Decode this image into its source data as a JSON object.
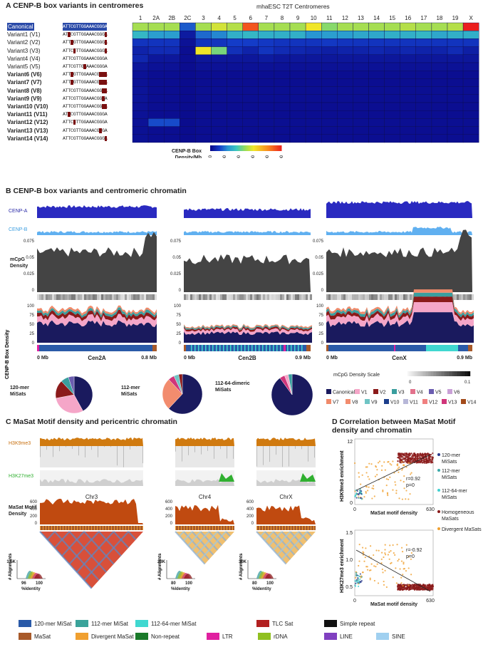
{
  "panelA": {
    "title": "A CENP-B box variants in centromeres",
    "heatmap_title": "mhaESC T2T Centromeres",
    "chromosomes": [
      "1",
      "2A",
      "2B",
      "2C",
      "3",
      "4",
      "5",
      "6",
      "7",
      "8",
      "9",
      "10",
      "11",
      "12",
      "13",
      "14",
      "15",
      "16",
      "17",
      "18",
      "19",
      "X"
    ],
    "variants": [
      {
        "name": "Canonical",
        "seq": "ATTCGTTGGAAACGGGA"
      },
      {
        "name": "Variant1 (V1)",
        "seq": "ATTCGTTGGAAACGGGA"
      },
      {
        "name": "Variant2 (V2)",
        "seq": "ATTCGTTGGAAACGGGA"
      },
      {
        "name": "Variant3 (V3)",
        "seq": "ATTCGTTGGAAACGGGA"
      },
      {
        "name": "Variant4 (V4)",
        "seq": "ATTCGTTGGAAACGGGA"
      },
      {
        "name": "Variant5 (V5)",
        "seq": "ATTCGTTGGAAACGGGA"
      },
      {
        "name": "Variant6 (V6)",
        "seq": "ATTCGTTGGAAACGGGA"
      },
      {
        "name": "Variant7 (V7)",
        "seq": "ATTCGTTGGAAACGGGA"
      },
      {
        "name": "Variant8 (V8)",
        "seq": "ATTCGTTGGAAACGGGA"
      },
      {
        "name": "Variant9 (V9)",
        "seq": "ATTCGTTGGAAACGGGA"
      },
      {
        "name": "Variant10 (V10)",
        "seq": "ATTCGTTGGAAACGGGA"
      },
      {
        "name": "Variant11 (V11)",
        "seq": "ATTCGTTGGAAACGGGA"
      },
      {
        "name": "Variant12 (V12)",
        "seq": "ATTCGTTGGAAACGGGA"
      },
      {
        "name": "Variant13 (V13)",
        "seq": "ATTCGTTGGAAACGGGA"
      },
      {
        "name": "Variant14 (V14)",
        "seq": "ATTCGTTGGAAACGGGA"
      }
    ],
    "mutations": [
      [],
      [
        2,
        16
      ],
      [
        3,
        16
      ],
      [
        4,
        16
      ],
      [],
      [
        8
      ],
      [
        3,
        14,
        15,
        16
      ],
      [
        3,
        14,
        15,
        16
      ],
      [
        15,
        16
      ],
      [
        15
      ],
      [
        15,
        16
      ],
      [
        2
      ],
      [
        4
      ],
      [
        14
      ],
      [
        16
      ]
    ],
    "heatmap_values": [
      [
        2500,
        2500,
        2500,
        800,
        2500,
        2800,
        2600,
        4500,
        2500,
        2500,
        2500,
        3000,
        2300,
        2500,
        2500,
        2500,
        2500,
        2600,
        2500,
        2500,
        2600,
        5000
      ],
      [
        1600,
        1300,
        1300,
        200,
        900,
        1100,
        1500,
        1600,
        1500,
        1500,
        1500,
        1200,
        1300,
        1300,
        1400,
        1400,
        1500,
        1500,
        1600,
        1400,
        1500,
        1500
      ],
      [
        500,
        500,
        500,
        100,
        500,
        500,
        600,
        600,
        550,
        500,
        500,
        500,
        550,
        500,
        500,
        500,
        500,
        500,
        500,
        500,
        500,
        500
      ],
      [
        300,
        400,
        400,
        50,
        3000,
        2200,
        450,
        300,
        500,
        400,
        350,
        300,
        250,
        300,
        300,
        350,
        300,
        350,
        300,
        300,
        400,
        250
      ],
      [
        350,
        150,
        150,
        50,
        150,
        150,
        150,
        150,
        200,
        150,
        150,
        150,
        150,
        150,
        150,
        150,
        150,
        150,
        150,
        150,
        150,
        150
      ],
      [
        150,
        100,
        100,
        30,
        100,
        100,
        100,
        100,
        100,
        100,
        100,
        100,
        100,
        100,
        100,
        100,
        100,
        100,
        100,
        100,
        100,
        100
      ],
      [
        100,
        50,
        50,
        20,
        50,
        50,
        50,
        50,
        50,
        50,
        50,
        50,
        50,
        50,
        50,
        50,
        50,
        50,
        50,
        50,
        50,
        50
      ],
      [
        100,
        50,
        50,
        20,
        50,
        50,
        50,
        50,
        50,
        50,
        50,
        50,
        50,
        50,
        50,
        50,
        50,
        50,
        50,
        50,
        50,
        50
      ],
      [
        120,
        50,
        50,
        20,
        60,
        60,
        60,
        60,
        60,
        60,
        60,
        60,
        60,
        60,
        60,
        60,
        60,
        60,
        60,
        60,
        60,
        60
      ],
      [
        120,
        50,
        50,
        20,
        60,
        60,
        60,
        60,
        60,
        60,
        60,
        60,
        60,
        60,
        60,
        60,
        60,
        60,
        60,
        60,
        60,
        60
      ],
      [
        100,
        50,
        50,
        20,
        50,
        50,
        50,
        50,
        50,
        50,
        50,
        50,
        50,
        50,
        50,
        50,
        50,
        50,
        50,
        50,
        50,
        50
      ],
      [
        100,
        50,
        50,
        20,
        50,
        50,
        50,
        50,
        50,
        50,
        50,
        50,
        50,
        50,
        50,
        50,
        50,
        50,
        50,
        50,
        50,
        50
      ],
      [
        100,
        700,
        700,
        20,
        60,
        60,
        60,
        60,
        60,
        60,
        60,
        60,
        60,
        60,
        60,
        60,
        60,
        60,
        60,
        60,
        60,
        60
      ],
      [
        80,
        50,
        50,
        20,
        50,
        50,
        50,
        50,
        50,
        50,
        50,
        50,
        50,
        50,
        50,
        50,
        50,
        50,
        50,
        50,
        50,
        50
      ],
      [
        80,
        50,
        50,
        20,
        50,
        50,
        50,
        50,
        50,
        50,
        50,
        50,
        50,
        50,
        50,
        50,
        50,
        50,
        50,
        50,
        50,
        50
      ]
    ],
    "colorbar_label": "CENP-B Box\nDensity/Mb",
    "colorbar_ticks": [
      "0",
      "1000",
      "2000",
      "3000",
      "4000",
      "5000"
    ]
  },
  "panelB": {
    "title": "B CENP-B box variants and centromeric chromatin",
    "track_labels": {
      "cenpa": "CENP-A",
      "cenpb": "CENP-B",
      "mcpg": "mCpG\nDensity",
      "cenpb_density": "CENP-B Box Density"
    },
    "mcpg_ticks": [
      "0.075",
      "0.05",
      "0.025",
      "0"
    ],
    "density_ticks": [
      "100",
      "75",
      "50",
      "25",
      "0"
    ],
    "chrom": [
      {
        "name": "Cen2A",
        "start": "0 Mb",
        "end": "0.8 Mb"
      },
      {
        "name": "Cen2B",
        "start": "0 Mb",
        "end": "0.9 Mb"
      },
      {
        "name": "CenX",
        "start": "0 Mb",
        "end": "0.9 Mb"
      }
    ],
    "pie_labels": [
      "120-mer\nMiSats",
      "112-mer\nMiSats",
      "112-64-dimeric\nMiSats"
    ],
    "scale_label": "mCpG Density Scale",
    "scale_ticks": [
      "0",
      "0.1"
    ],
    "legend": [
      {
        "name": "Canonical",
        "color": "#1a1a5e"
      },
      {
        "name": "V1",
        "color": "#f5a6c8"
      },
      {
        "name": "V2",
        "color": "#8b1a1a"
      },
      {
        "name": "V3",
        "color": "#3a9e9e"
      },
      {
        "name": "V4",
        "color": "#e2728c"
      },
      {
        "name": "V5",
        "color": "#6b5db0"
      },
      {
        "name": "V6",
        "color": "#c9a0d6"
      },
      {
        "name": "V7",
        "color": "#f08a6a"
      },
      {
        "name": "V8",
        "color": "#f28c6e"
      },
      {
        "name": "V9",
        "color": "#6fc4c4"
      },
      {
        "name": "V10",
        "color": "#1c3f8c"
      },
      {
        "name": "V11",
        "color": "#b7b7d8"
      },
      {
        "name": "V12",
        "color": "#f08080"
      },
      {
        "name": "V13",
        "color": "#d0357a"
      },
      {
        "name": "V14",
        "color": "#a34b1a"
      }
    ]
  },
  "panelC": {
    "title": "C MaSat Motif density and pericentric chromatin",
    "track_labels": {
      "h3k9": "H3K9me3",
      "h3k27": "H3K27me3",
      "masat": "MaSat Motif\nDensity"
    },
    "chroms": [
      {
        "name": "Chr3",
        "ticks": [
          "600",
          "400",
          "200",
          "0"
        ],
        "hist_top": "1.5K"
      },
      {
        "name": "Chr4",
        "ticks": [
          "600",
          "400",
          "200",
          "0"
        ],
        "hist_top": "23K"
      },
      {
        "name": "ChrX",
        "ticks": [
          "600",
          "400",
          "200",
          "0"
        ],
        "hist_top": "30K"
      }
    ],
    "hist_xlabels": [
      [
        "96",
        "100"
      ],
      [
        "80",
        "100"
      ],
      [
        "80",
        "100"
      ]
    ],
    "hist_axis_y": "# Alignments",
    "hist_axis_x": "%Identity"
  },
  "panelD": {
    "title": "D Correlation between MaSat Motif\ndensity and chromatin",
    "top": {
      "ylabel": "H3K9me3 enrichment",
      "xlabel": "MaSat motif density",
      "yticks": [
        "12",
        "0"
      ],
      "xticks": [
        "0",
        "630"
      ],
      "r": "r=0.92",
      "p": "p=0"
    },
    "bottom": {
      "ylabel": "H3K27me3 enrichment",
      "xlabel": "MaSat motif density",
      "yticks": [
        "1.5",
        "1.0",
        "0.5"
      ],
      "xticks": [
        "0",
        "630"
      ],
      "r": "r=-0.92",
      "p": "p=0"
    },
    "legend": [
      {
        "name": "120-mer\nMiSats",
        "color": "#2a3a8c"
      },
      {
        "name": "112-mer\nMiSats",
        "color": "#3aa9a9"
      },
      {
        "name": "112-64-mer\nMiSats",
        "color": "#40d0d0"
      },
      {
        "name": "Homogeneous\nMaSats",
        "color": "#8b1a1a"
      },
      {
        "name": "Divergent MaSats",
        "color": "#f0a030"
      }
    ]
  },
  "bottom_legend": [
    {
      "name": "120-mer MiSat",
      "color": "#2a5aa8"
    },
    {
      "name": "112-mer MiSat",
      "color": "#3aa39a"
    },
    {
      "name": "112-64-mer MiSat",
      "color": "#40d8d0"
    },
    {
      "name": "TLC Sat",
      "color": "#b22020"
    },
    {
      "name": "Simple repeat",
      "color": "#111111"
    },
    {
      "name": "MaSat",
      "color": "#a85a2a"
    },
    {
      "name": "Divergent MaSat",
      "color": "#f0a030"
    },
    {
      "name": "Non-repeat",
      "color": "#1a7a2a"
    },
    {
      "name": "LTR",
      "color": "#e020a0"
    },
    {
      "name": "rDNA",
      "color": "#90c020"
    },
    {
      "name": "LINE",
      "color": "#8040c0"
    },
    {
      "name": "SINE",
      "color": "#a0d0f0"
    }
  ]
}
